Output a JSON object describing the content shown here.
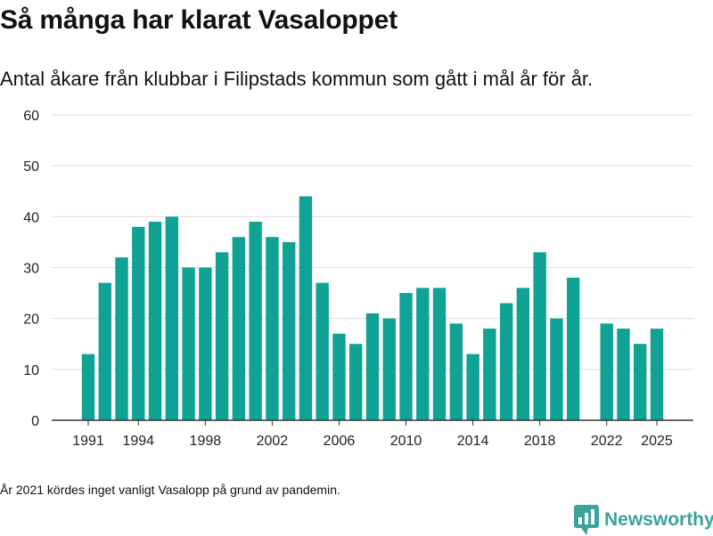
{
  "title": "Så många har klarat Vasaloppet",
  "subtitle": "Antal åkare från klubbar i Filipstads kommun som gått i mål år för år.",
  "footnote": "År 2021 kördes inget vanligt Vasalopp på grund av pandemin.",
  "brand": {
    "name": "Newsworthy",
    "color": "#3aa39a"
  },
  "colors": {
    "bar": "#0fa295",
    "grid": "#dddddd",
    "axis": "#333333"
  },
  "chart_data": {
    "type": "bar",
    "x": [
      1991,
      1992,
      1993,
      1994,
      1995,
      1996,
      1997,
      1998,
      1999,
      2000,
      2001,
      2002,
      2003,
      2004,
      2005,
      2006,
      2007,
      2008,
      2009,
      2010,
      2011,
      2012,
      2013,
      2014,
      2015,
      2016,
      2017,
      2018,
      2019,
      2020,
      2021,
      2022,
      2023,
      2024,
      2025
    ],
    "values": [
      13,
      27,
      32,
      38,
      39,
      40,
      30,
      30,
      33,
      36,
      39,
      36,
      35,
      44,
      27,
      17,
      15,
      21,
      20,
      25,
      26,
      26,
      19,
      13,
      18,
      23,
      26,
      33,
      20,
      28,
      null,
      19,
      18,
      15,
      18
    ],
    "xticks": [
      1991,
      1994,
      1998,
      2002,
      2006,
      2010,
      2014,
      2018,
      2022,
      2025
    ],
    "yticks": [
      0,
      10,
      20,
      30,
      40,
      50,
      60
    ],
    "ylim": [
      0,
      60
    ],
    "grid": true
  }
}
